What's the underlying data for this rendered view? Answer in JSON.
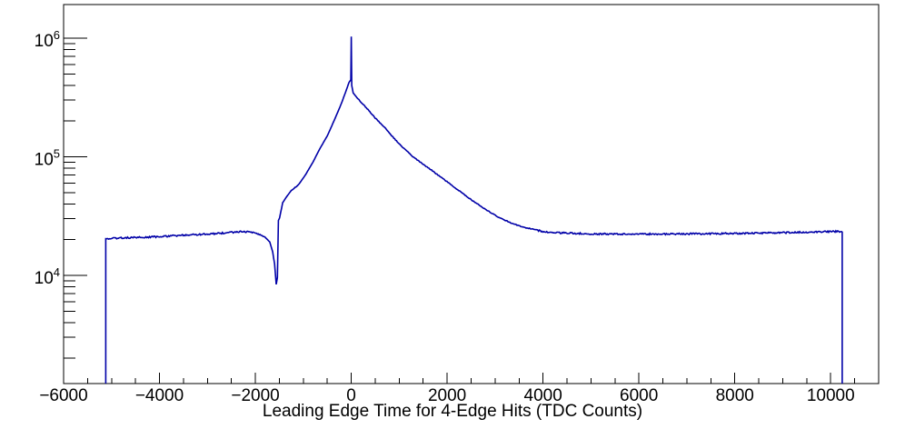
{
  "chart_data": {
    "type": "histogram_line",
    "title": "",
    "xlabel": "Leading Edge Time for 4-Edge Hits (TDC Counts)",
    "ylabel": "",
    "xlim": [
      -6000,
      11000
    ],
    "ylim": [
      1225,
      1920000
    ],
    "yscale": "log",
    "grid": false,
    "legend": "none",
    "background_color": "#ffffff",
    "axis_color": "#000000",
    "line_color": "#0000a8",
    "x_axis": {
      "major_tick_values": [
        -6000,
        -4000,
        -2000,
        0,
        2000,
        4000,
        6000,
        8000,
        10000
      ],
      "major_tick_labels": [
        "−6000",
        "−4000",
        "−2000",
        "0",
        "2000",
        "4000",
        "6000",
        "8000",
        "10000"
      ],
      "minor_tick_step": 500
    },
    "y_axis": {
      "major_ticks": [
        {
          "value": 10000,
          "base": "10",
          "exponent": "4"
        },
        {
          "value": 100000,
          "base": "10",
          "exponent": "5"
        },
        {
          "value": 1000000,
          "base": "10",
          "exponent": "6"
        }
      ],
      "minor_ticks_per_decade": [
        2,
        3,
        4,
        5,
        6,
        7,
        8,
        9
      ]
    },
    "histogram": {
      "x_start": -5120,
      "x_end": 10240,
      "baseline_counts": 22000,
      "peak": {
        "x": 0,
        "spike_counts": 1030000,
        "shoulder_counts": 440000
      },
      "dip": {
        "x": -1565,
        "min_counts": 8400
      },
      "points": [
        [
          -5120,
          20400
        ],
        [
          -4800,
          20700
        ],
        [
          -4400,
          20900
        ],
        [
          -4000,
          21200
        ],
        [
          -3600,
          21700
        ],
        [
          -3200,
          22100
        ],
        [
          -2800,
          22500
        ],
        [
          -2500,
          23100
        ],
        [
          -2250,
          23400
        ],
        [
          -2050,
          23000
        ],
        [
          -1900,
          22000
        ],
        [
          -1800,
          21000
        ],
        [
          -1700,
          19200
        ],
        [
          -1640,
          15800
        ],
        [
          -1600,
          12500
        ],
        [
          -1565,
          8400
        ],
        [
          -1540,
          9600
        ],
        [
          -1520,
          29000
        ],
        [
          -1495,
          30500
        ],
        [
          -1430,
          41000
        ],
        [
          -1350,
          46000
        ],
        [
          -1250,
          52000
        ],
        [
          -1100,
          58000
        ],
        [
          -950,
          71000
        ],
        [
          -800,
          90000
        ],
        [
          -650,
          118000
        ],
        [
          -500,
          150000
        ],
        [
          -350,
          205000
        ],
        [
          -200,
          285000
        ],
        [
          -100,
          368000
        ],
        [
          -45,
          425000
        ],
        [
          -10,
          445000
        ],
        [
          0,
          1030000
        ],
        [
          10,
          400000
        ],
        [
          40,
          345000
        ],
        [
          100,
          322000
        ],
        [
          200,
          290000
        ],
        [
          350,
          250000
        ],
        [
          500,
          212000
        ],
        [
          700,
          176000
        ],
        [
          1000,
          128000
        ],
        [
          1300,
          99000
        ],
        [
          1600,
          81000
        ],
        [
          1900,
          66000
        ],
        [
          2200,
          53500
        ],
        [
          2500,
          43500
        ],
        [
          2800,
          36000
        ],
        [
          3100,
          30500
        ],
        [
          3400,
          27000
        ],
        [
          3700,
          24800
        ],
        [
          4000,
          23400
        ],
        [
          4400,
          22800
        ],
        [
          5000,
          22400
        ],
        [
          5600,
          22300
        ],
        [
          6400,
          22300
        ],
        [
          7200,
          22400
        ],
        [
          8000,
          22600
        ],
        [
          8800,
          22800
        ],
        [
          9600,
          23200
        ],
        [
          10240,
          23500
        ]
      ]
    }
  }
}
